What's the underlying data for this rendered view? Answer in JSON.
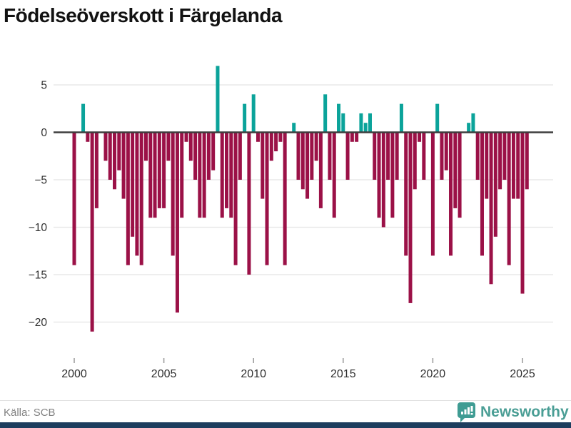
{
  "title": "Födelseöverskott i Färgelanda",
  "source": {
    "label": "Källa: SCB"
  },
  "brand": {
    "name": "Newsworthy"
  },
  "colors": {
    "positive": "#0ba39a",
    "negative": "#9b1147",
    "zero_line": "#3d3d3d",
    "gridline": "#e4e4e4",
    "axis_text": "#2f2f2f",
    "tick_mark": "#999999",
    "source_text": "#828282",
    "brand_teal": "#4a9e95",
    "bottom_bar": "#1d3d5e"
  },
  "chart_data": {
    "type": "bar",
    "title": "Födelseöverskott i Färgelanda",
    "xlabel": "",
    "ylabel": "",
    "frequency": "quarterly",
    "start": "2000-Q1",
    "end": "2025-Q2",
    "values_by_year": {
      "2000": [
        -14,
        0,
        3,
        -1
      ],
      "2001": [
        -21,
        -8,
        0,
        -3
      ],
      "2002": [
        -5,
        -6,
        -4,
        -7
      ],
      "2003": [
        -14,
        -11,
        -13,
        -14
      ],
      "2004": [
        -3,
        -9,
        -9,
        -8
      ],
      "2005": [
        -8,
        -3,
        -13,
        -19
      ],
      "2006": [
        -9,
        -1,
        -3,
        -5
      ],
      "2007": [
        -9,
        -9,
        -5,
        -4
      ],
      "2008": [
        7,
        -9,
        -8,
        -9
      ],
      "2009": [
        -14,
        -5,
        3,
        -15
      ],
      "2010": [
        4,
        -1,
        -7,
        -14
      ],
      "2011": [
        -3,
        -2,
        -1,
        -14
      ],
      "2012": [
        0,
        1,
        -5,
        -6
      ],
      "2013": [
        -7,
        -5,
        -3,
        -8
      ],
      "2014": [
        4,
        -5,
        -9,
        3
      ],
      "2015": [
        2,
        -5,
        -1,
        -1
      ],
      "2016": [
        2,
        1,
        2,
        -5
      ],
      "2017": [
        -9,
        -10,
        -5,
        -9
      ],
      "2018": [
        -5,
        3,
        -13,
        -18
      ],
      "2019": [
        -6,
        -1,
        -5,
        0
      ],
      "2020": [
        -13,
        3,
        -5,
        -4
      ],
      "2021": [
        -13,
        -8,
        -9,
        0
      ],
      "2022": [
        1,
        2,
        -5,
        -13
      ],
      "2023": [
        -7,
        -16,
        -11,
        -6
      ],
      "2024": [
        -5,
        -14,
        -7,
        -7
      ],
      "2025": [
        -17,
        -6
      ]
    },
    "yticks": [
      5,
      0,
      -5,
      -10,
      -15,
      -20
    ],
    "xticks": [
      2000,
      2005,
      2010,
      2015,
      2020,
      2025
    ],
    "ylim": [
      -22,
      7.5
    ],
    "grid": "horizontal",
    "legend": "none"
  }
}
